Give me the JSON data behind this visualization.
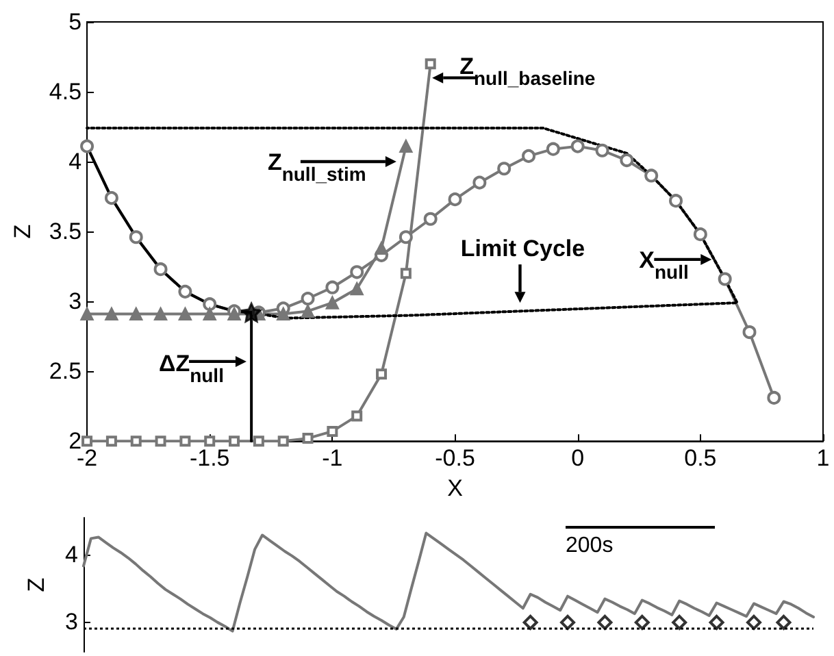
{
  "chart_data": [
    {
      "type": "line",
      "xlabel": "X",
      "ylabel": "Z",
      "xlim": [
        -2,
        1
      ],
      "ylim": [
        2,
        5
      ],
      "xticks": [
        -2,
        -1.5,
        -1,
        -0.5,
        0,
        0.5,
        1
      ],
      "yticks": [
        2,
        2.5,
        3,
        3.5,
        4,
        4.5,
        5
      ],
      "grid": false,
      "series": [
        {
          "color": "#777777",
          "marker": "circle",
          "line_style": "solid",
          "x": [
            -2,
            -1.9,
            -1.8,
            -1.7,
            -1.6,
            -1.5,
            -1.4,
            -1.3,
            -1.2,
            -1.1,
            -1.0,
            -0.9,
            -0.8,
            -0.7,
            -0.6,
            -0.5,
            -0.4,
            -0.3,
            -0.2,
            -0.1,
            0,
            0.1,
            0.2,
            0.3,
            0.4,
            0.5,
            0.6,
            0.7,
            0.8
          ],
          "values": [
            4.11,
            3.74,
            3.46,
            3.23,
            3.07,
            2.98,
            2.93,
            2.92,
            2.95,
            3.02,
            3.1,
            3.21,
            3.33,
            3.46,
            3.59,
            3.73,
            3.85,
            3.95,
            4.04,
            4.09,
            4.11,
            4.08,
            4.01,
            3.9,
            3.72,
            3.48,
            3.16,
            2.78,
            2.31
          ]
        },
        {
          "color": "#777777",
          "marker": "square",
          "line_style": "solid",
          "x": [
            -2,
            -1.9,
            -1.8,
            -1.7,
            -1.6,
            -1.5,
            -1.4,
            -1.3,
            -1.2,
            -1.1,
            -1.0,
            -0.9,
            -0.8,
            -0.7,
            -0.6
          ],
          "values": [
            2,
            2,
            2,
            2,
            2,
            2,
            2,
            2,
            2,
            2.02,
            2.07,
            2.18,
            2.48,
            3.2,
            4.7
          ]
        },
        {
          "color": "#777777",
          "marker": "triangle",
          "line_style": "solid",
          "x": [
            -2,
            -1.9,
            -1.8,
            -1.7,
            -1.6,
            -1.5,
            -1.4,
            -1.3,
            -1.2,
            -1.1,
            -1.0,
            -0.9,
            -0.8,
            -0.7
          ],
          "values": [
            2.91,
            2.91,
            2.91,
            2.91,
            2.91,
            2.91,
            2.91,
            2.91,
            2.91,
            2.93,
            2.99,
            3.09,
            3.38,
            4.11
          ]
        },
        {
          "color": "#000000",
          "marker": "none",
          "line_style": "solid",
          "x": [
            -2,
            -1.9,
            -1.8,
            -1.7,
            -1.6,
            -1.5,
            -1.4,
            -1.33
          ],
          "values": [
            4.11,
            3.74,
            3.46,
            3.23,
            3.07,
            2.98,
            2.93,
            2.92
          ]
        },
        {
          "color": "#000000",
          "marker": "none",
          "line_style": "dotted",
          "x": [
            -1.33,
            -1.19,
            -0.68,
            0.65,
            0.6,
            0.5,
            0.4,
            0.3,
            0.2,
            -0.14,
            -2
          ],
          "values": [
            2.92,
            2.88,
            2.9,
            2.99,
            3.16,
            3.48,
            3.72,
            3.9,
            4.06,
            4.24,
            4.24
          ]
        },
        {
          "color": "#000000",
          "marker": "none",
          "line_style": "solid",
          "x": [
            -1.33,
            -1.33
          ],
          "values": [
            2,
            2.92
          ]
        },
        {
          "type": "scatter",
          "color": "#000000",
          "marker": "star",
          "x": [
            -1.33
          ],
          "values": [
            2.92
          ]
        }
      ],
      "annotations": [
        {
          "text": "Z$_{null_baseline}$",
          "x": -0.593,
          "y": 4.6
        },
        {
          "text": "Z$_{null_stim}$",
          "x": -0.739,
          "y": 4.0
        },
        {
          "text": "ΔZ$_{null}$",
          "x": -1.35,
          "y": 2.57
        },
        {
          "text": "Limit Cycle",
          "x": -0.235,
          "y": 2.99
        },
        {
          "text": "X$_{null}$",
          "x": 0.546,
          "y": 3.3
        }
      ]
    },
    {
      "type": "line",
      "ylabel": "Z",
      "ylim": [
        2.55,
        4.55
      ],
      "yticks": [
        3,
        4
      ],
      "grid": false,
      "tick_labels": "y",
      "categories": [
        null,
        null,
        null,
        null,
        null,
        null,
        null,
        null,
        null,
        null,
        null,
        null,
        null,
        null,
        null,
        null,
        null,
        null,
        null,
        null,
        null,
        null,
        null,
        null,
        null,
        null,
        null,
        null,
        null,
        null,
        null,
        null,
        null,
        null,
        null,
        null,
        null,
        null,
        null,
        null,
        null,
        null,
        null,
        null,
        null,
        null,
        null,
        null,
        null,
        null,
        null,
        null,
        null,
        null,
        null,
        null,
        null,
        null,
        null,
        null,
        null,
        null,
        null,
        null,
        null,
        null,
        null,
        null,
        null,
        null,
        null,
        null,
        null,
        null,
        null,
        null,
        null,
        null,
        null,
        null,
        null,
        null,
        null,
        null,
        null,
        null,
        null,
        null,
        null,
        null,
        null,
        null,
        null,
        null,
        null,
        null,
        null,
        null,
        null
      ],
      "series": [
        {
          "color": "#777777",
          "marker": "none",
          "line_style": "solid",
          "values": [
            3.83,
            4.24,
            4.26,
            4.18,
            4.1,
            4.03,
            3.95,
            3.86,
            3.76,
            3.67,
            3.57,
            3.48,
            3.41,
            3.34,
            3.26,
            3.19,
            3.12,
            3.06,
            2.99,
            2.93,
            2.86,
            3.28,
            3.67,
            4.08,
            4.29,
            4.21,
            4.13,
            4.05,
            3.98,
            3.9,
            3.81,
            3.72,
            3.63,
            3.54,
            3.45,
            3.38,
            3.3,
            3.23,
            3.15,
            3.08,
            3.02,
            2.95,
            2.89,
            3.07,
            3.49,
            3.9,
            4.32,
            4.24,
            4.16,
            4.08,
            4.0,
            3.92,
            3.83,
            3.74,
            3.65,
            3.56,
            3.47,
            3.38,
            3.29,
            3.2,
            3.41,
            3.36,
            3.29,
            3.23,
            3.17,
            3.38,
            3.32,
            3.26,
            3.2,
            3.14,
            3.34,
            3.29,
            3.23,
            3.18,
            3.12,
            3.32,
            3.27,
            3.21,
            3.16,
            3.1,
            3.31,
            3.26,
            3.2,
            3.15,
            3.09,
            3.28,
            3.23,
            3.18,
            3.13,
            3.08,
            3.27,
            3.22,
            3.17,
            3.12,
            3.3,
            3.26,
            3.2,
            3.13,
            3.07
          ]
        },
        {
          "type": "scatter",
          "color": "#000000",
          "marker": "diamond",
          "values": [
            null,
            null,
            null,
            null,
            null,
            null,
            null,
            null,
            null,
            null,
            null,
            null,
            null,
            null,
            null,
            null,
            null,
            null,
            null,
            null,
            null,
            null,
            null,
            null,
            null,
            null,
            null,
            null,
            null,
            null,
            null,
            null,
            null,
            null,
            null,
            null,
            null,
            null,
            null,
            null,
            null,
            null,
            null,
            null,
            null,
            null,
            null,
            null,
            null,
            null,
            null,
            null,
            null,
            null,
            null,
            null,
            null,
            null,
            null,
            null,
            2.99,
            null,
            null,
            null,
            null,
            2.99,
            null,
            null,
            null,
            null,
            2.99,
            null,
            null,
            null,
            null,
            2.99,
            null,
            null,
            null,
            null,
            2.99,
            null,
            null,
            null,
            null,
            2.99,
            null,
            null,
            null,
            null,
            2.99,
            null,
            null,
            null,
            2.99,
            null,
            null,
            null,
            null
          ]
        }
      ],
      "ref_lines": [
        {
          "axis": "y",
          "value": 2.91,
          "color": "#000000",
          "line_style": "dotted"
        }
      ],
      "annotations": [
        "200s"
      ]
    }
  ]
}
